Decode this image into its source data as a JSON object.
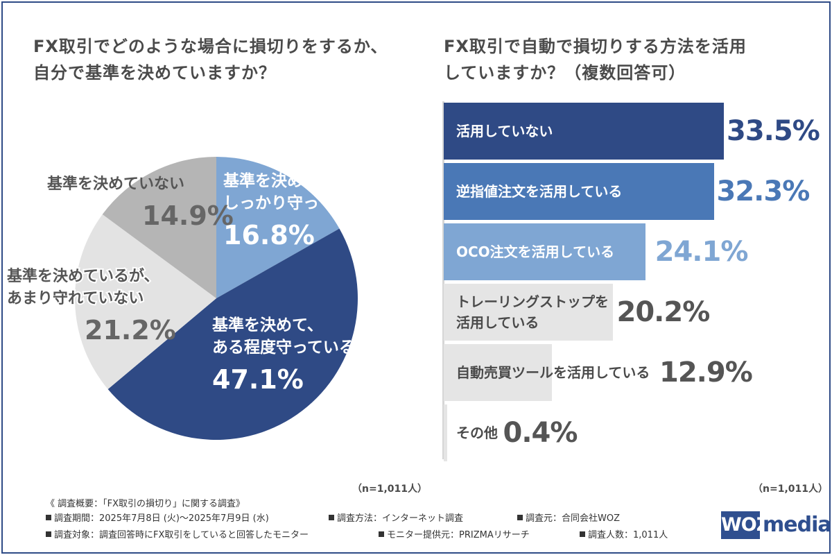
{
  "left_chart": {
    "title_line1": "FX取引でどのような場合に損切りをするか、",
    "title_line2": "自分で基準を決めていますか？",
    "n_label": "（n=1,011人）"
  },
  "right_chart": {
    "title_line1": "FX取引で自動で損切りする方法を活用",
    "title_line2": "していますか？（複数回答可）",
    "n_label": "（n=1,011人）"
  },
  "chart_data": [
    {
      "type": "pie",
      "title": "FX取引でどのような場合に損切りをするか、自分で基準を決めていますか？",
      "slices": [
        {
          "label_lines": [
            "基準を決めて、",
            "しっかり守っている"
          ],
          "value": 16.8,
          "value_text": "16.8%",
          "color": "#7fa6d3"
        },
        {
          "label_lines": [
            "基準を決めて、",
            "ある程度守っている"
          ],
          "value": 47.1,
          "value_text": "47.1%",
          "color": "#2f4a85"
        },
        {
          "label_lines": [
            "基準を決めているが、",
            "あまり守れていない"
          ],
          "value": 21.2,
          "value_text": "21.2%",
          "color": "#e3e3e3"
        },
        {
          "label_lines": [
            "基準を決めていない"
          ],
          "value": 14.9,
          "value_text": "14.9%",
          "color": "#b5b5b5"
        }
      ]
    },
    {
      "type": "bar",
      "orientation": "horizontal",
      "title": "FX取引で自動で損切りする方法を活用していますか？（複数回答可）",
      "categories": [
        {
          "label_lines": [
            "活用していない"
          ],
          "value": 33.5,
          "value_text": "33.5%",
          "color": "#2f4a85",
          "value_color": "#2f4a85",
          "label_dark": false
        },
        {
          "label_lines": [
            "逆指値注文を活用している"
          ],
          "value": 32.3,
          "value_text": "32.3%",
          "color": "#4a78b6",
          "value_color": "#4a78b6",
          "label_dark": false
        },
        {
          "label_lines": [
            "OCO注文を活用している"
          ],
          "value": 24.1,
          "value_text": "24.1%",
          "color": "#7fa6d3",
          "value_color": "#7fa6d3",
          "label_dark": false
        },
        {
          "label_lines": [
            "トレーリングストップを",
            "活用している"
          ],
          "value": 20.2,
          "value_text": "20.2%",
          "color": "#e5e5e5",
          "value_color": "#555555",
          "label_dark": true
        },
        {
          "label_lines": [
            "自動売買ツールを活用している"
          ],
          "value": 12.9,
          "value_text": "12.9%",
          "color": "#e5e5e5",
          "value_color": "#555555",
          "label_dark": true
        },
        {
          "label_lines": [
            "その他"
          ],
          "value": 0.4,
          "value_text": "0.4%",
          "color": "#e5e5e5",
          "value_color": "#555555",
          "label_dark": true
        }
      ],
      "xlim": [
        0,
        33.5
      ]
    }
  ],
  "survey": {
    "header": "《 調査概要：「FX取引の損切り」に関する調査》",
    "period": "調査期間：2025年7月8日 (火)〜2025年7月9日 (水)",
    "method": "調査方法：インターネット調査",
    "organizer": "調査元：合同会社WOZ",
    "target": "調査対象：調査回答時にFX取引をしていると回答したモニター",
    "provider": "モニター提供元：PRIZMAリサーチ",
    "count": "調査人数：1,011人"
  },
  "logo": {
    "woz": "WOZ",
    "media": "media"
  }
}
